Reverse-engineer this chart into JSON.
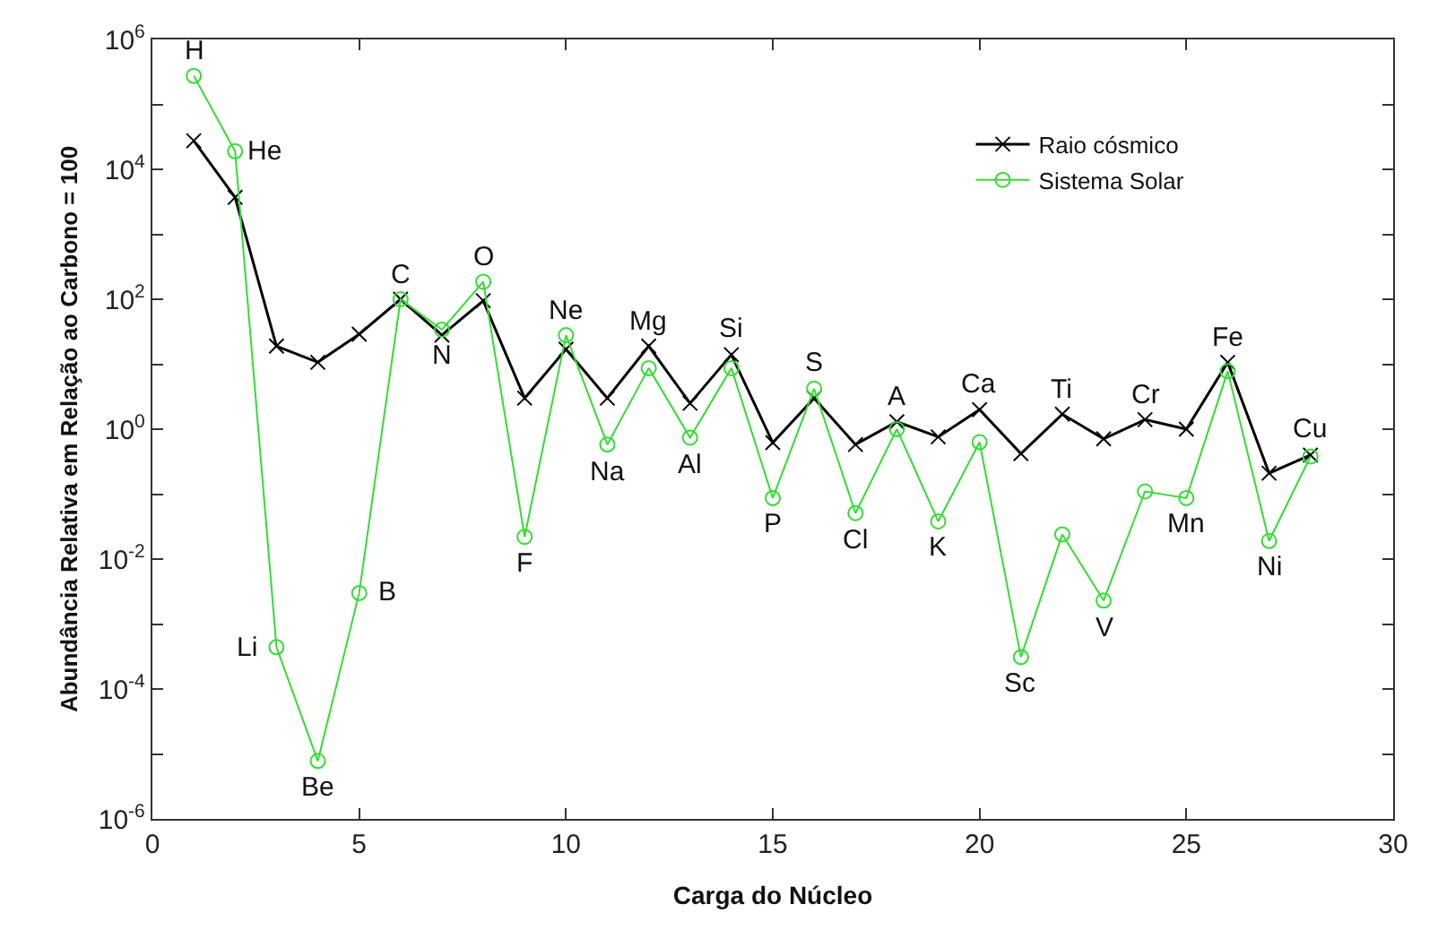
{
  "chart_data": {
    "type": "line",
    "xlabel": "Carga do Núcleo",
    "ylabel": "Abundância Relativa em Relação ao Carbono = 100",
    "x": [
      1,
      2,
      3,
      4,
      5,
      6,
      7,
      8,
      9,
      10,
      11,
      12,
      13,
      14,
      15,
      16,
      17,
      18,
      19,
      20,
      21,
      22,
      23,
      24,
      25,
      26,
      27,
      28
    ],
    "series": [
      {
        "name": "Raio cósmico",
        "color": "#000000",
        "marker": "cross",
        "values": [
          27500,
          3700,
          19,
          10.7,
          29,
          100,
          28,
          95,
          3.0,
          17,
          3.0,
          19,
          2.5,
          14,
          0.62,
          3.0,
          0.58,
          1.3,
          0.76,
          2.0,
          0.42,
          1.7,
          0.71,
          1.4,
          1.0,
          10.7,
          0.21,
          0.4
        ]
      },
      {
        "name": "Sistema Solar",
        "color": "#33dd33",
        "marker": "circle",
        "values": [
          275000,
          19000,
          0.00044,
          7.8e-06,
          0.003,
          100,
          34,
          186,
          0.022,
          28,
          0.58,
          8.7,
          0.74,
          8.7,
          0.087,
          4.2,
          0.051,
          1.0,
          0.038,
          0.63,
          0.00031,
          0.024,
          0.0023,
          0.11,
          0.087,
          7.8,
          0.019,
          0.38
        ]
      }
    ],
    "annotations": [
      {
        "text": "H",
        "x": 1,
        "y": 275000
      },
      {
        "text": "He",
        "x": 2,
        "y": 19000
      },
      {
        "text": "Li",
        "x": 3,
        "y": 0.00044
      },
      {
        "text": "Be",
        "x": 4,
        "y": 7.8e-06
      },
      {
        "text": "B",
        "x": 5,
        "y": 0.003
      },
      {
        "text": "C",
        "x": 6,
        "y": 100
      },
      {
        "text": "N",
        "x": 7,
        "y": 34
      },
      {
        "text": "O",
        "x": 8,
        "y": 186
      },
      {
        "text": "F",
        "x": 9,
        "y": 0.022
      },
      {
        "text": "Ne",
        "x": 10,
        "y": 28
      },
      {
        "text": "Na",
        "x": 11,
        "y": 0.58
      },
      {
        "text": "Mg",
        "x": 12,
        "y": 19
      },
      {
        "text": "Al",
        "x": 13,
        "y": 0.74
      },
      {
        "text": "Si",
        "x": 14,
        "y": 14
      },
      {
        "text": "P",
        "x": 15,
        "y": 0.087
      },
      {
        "text": "S",
        "x": 16,
        "y": 4.2
      },
      {
        "text": "Cl",
        "x": 17,
        "y": 0.051
      },
      {
        "text": "A",
        "x": 18,
        "y": 1.3
      },
      {
        "text": "K",
        "x": 19,
        "y": 0.038
      },
      {
        "text": "Ca",
        "x": 20,
        "y": 2.0
      },
      {
        "text": "Sc",
        "x": 21,
        "y": 0.00031
      },
      {
        "text": "Ti",
        "x": 22,
        "y": 1.7
      },
      {
        "text": "V",
        "x": 23,
        "y": 0.0023
      },
      {
        "text": "Cr",
        "x": 24,
        "y": 1.4
      },
      {
        "text": "Mn",
        "x": 25,
        "y": 0.087
      },
      {
        "text": "Fe",
        "x": 26,
        "y": 10.7
      },
      {
        "text": "Ni",
        "x": 27,
        "y": 0.019
      },
      {
        "text": "Cu",
        "x": 28,
        "y": 0.4
      }
    ],
    "log": "y",
    "xlim": [
      0,
      30
    ],
    "xticks": [
      0,
      5,
      10,
      15,
      20,
      25,
      30
    ],
    "ylim": [
      1e-06,
      1000000
    ],
    "yticks": [
      {
        "value": 1e-06,
        "label": "10$^{-6}$"
      },
      {
        "value": 1e-05,
        "label": null
      },
      {
        "value": 0.0001,
        "label": "10$^{-4}$"
      },
      {
        "value": 0.001,
        "label": null
      },
      {
        "value": 0.01,
        "label": "10$^{-2}$"
      },
      {
        "value": 0.1,
        "label": null
      },
      {
        "value": 1,
        "label": "10$^{0}$"
      },
      {
        "value": 10,
        "label": null
      },
      {
        "value": 100,
        "label": "10$^{2}$"
      },
      {
        "value": 1000,
        "label": null
      },
      {
        "value": 10000,
        "label": "10$^{4}$"
      },
      {
        "value": 100000,
        "label": null
      },
      {
        "value": 1000000,
        "label": "10$^{6}$"
      }
    ],
    "legend": "top right"
  }
}
